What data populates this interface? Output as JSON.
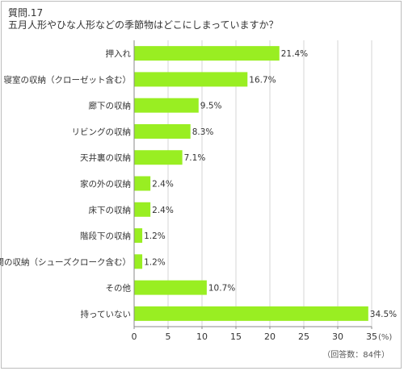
{
  "header": {
    "question_number": "質問.17",
    "question_text": "五月人形やひな人形などの季節物はどこにしまっていますか？"
  },
  "footnote": "（回答数：84件）",
  "colors": {
    "bar": "#99ee22",
    "axis": "#888888",
    "grid": "#d6d6d6",
    "text": "#333333"
  },
  "chart_data": {
    "type": "bar",
    "orientation": "horizontal",
    "categories": [
      "押入れ",
      "寝室の収納（クローゼット含む）",
      "廊下の収納",
      "リビングの収納",
      "天井裏の収納",
      "家の外の収納",
      "床下の収納",
      "階段下の収納",
      "玄関の収納（シューズクローク含む）",
      "その他",
      "持っていない"
    ],
    "values": [
      21.4,
      16.7,
      9.5,
      8.3,
      7.1,
      2.4,
      2.4,
      1.2,
      1.2,
      10.7,
      34.5
    ],
    "value_labels": [
      "21.4%",
      "16.7%",
      "9.5%",
      "8.3%",
      "7.1%",
      "2.4%",
      "2.4%",
      "1.2%",
      "1.2%",
      "10.7%",
      "34.5%"
    ],
    "xlim": [
      0,
      35
    ],
    "xticks": [
      0,
      5,
      10,
      15,
      20,
      25,
      30,
      35
    ],
    "xtick_labels": [
      "0",
      "5",
      "10",
      "15",
      "20",
      "25",
      "30",
      "35"
    ],
    "unit_label": "(%)",
    "grid": true
  }
}
